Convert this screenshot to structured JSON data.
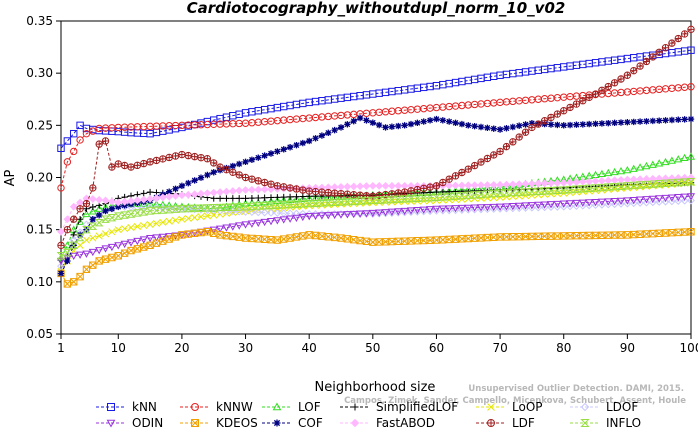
{
  "chart_data": {
    "type": "line",
    "title": "Cardiotocography_withoutdupl_norm_10_v02",
    "xlabel": "Neighborhood size",
    "ylabel": "AP",
    "xlim": [
      1,
      100
    ],
    "ylim": [
      0.05,
      0.35
    ],
    "x_ticks": [
      1,
      10,
      20,
      30,
      40,
      50,
      60,
      70,
      80,
      90,
      100
    ],
    "y_ticks": [
      0.05,
      0.1,
      0.15,
      0.2,
      0.25,
      0.3,
      0.35
    ],
    "grid": false,
    "legend_position": "bottom",
    "watermark_lines": [
      "Unsupervised Outlier Detection. DAMI, 2015.",
      "Campos, Zimek, Sander, Campello, Micenkova, Schubert, Assent, Houle"
    ],
    "series": [
      {
        "name": "kNN",
        "color": "#1a1ae6",
        "marker": "square",
        "anchors": [
          [
            1,
            0.228
          ],
          [
            2,
            0.235
          ],
          [
            3,
            0.242
          ],
          [
            4,
            0.25
          ],
          [
            5,
            0.247
          ],
          [
            7,
            0.245
          ],
          [
            10,
            0.244
          ],
          [
            12,
            0.243
          ],
          [
            15,
            0.242
          ],
          [
            20,
            0.248
          ],
          [
            25,
            0.255
          ],
          [
            30,
            0.262
          ],
          [
            40,
            0.272
          ],
          [
            50,
            0.28
          ],
          [
            60,
            0.288
          ],
          [
            70,
            0.298
          ],
          [
            80,
            0.306
          ],
          [
            90,
            0.314
          ],
          [
            95,
            0.318
          ],
          [
            100,
            0.322
          ]
        ]
      },
      {
        "name": "kNNW",
        "color": "#e62020",
        "marker": "circle",
        "anchors": [
          [
            1,
            0.19
          ],
          [
            2,
            0.215
          ],
          [
            3,
            0.225
          ],
          [
            4,
            0.236
          ],
          [
            5,
            0.242
          ],
          [
            7,
            0.247
          ],
          [
            10,
            0.248
          ],
          [
            15,
            0.249
          ],
          [
            20,
            0.25
          ],
          [
            30,
            0.252
          ],
          [
            40,
            0.257
          ],
          [
            50,
            0.262
          ],
          [
            60,
            0.267
          ],
          [
            70,
            0.272
          ],
          [
            80,
            0.277
          ],
          [
            90,
            0.282
          ],
          [
            100,
            0.287
          ]
        ]
      },
      {
        "name": "LOF",
        "color": "#33dd22",
        "marker": "triangle",
        "anchors": [
          [
            1,
            0.123
          ],
          [
            2,
            0.135
          ],
          [
            3,
            0.15
          ],
          [
            5,
            0.165
          ],
          [
            7,
            0.17
          ],
          [
            10,
            0.174
          ],
          [
            15,
            0.175
          ],
          [
            20,
            0.172
          ],
          [
            25,
            0.17
          ],
          [
            30,
            0.175
          ],
          [
            40,
            0.18
          ],
          [
            50,
            0.183
          ],
          [
            60,
            0.186
          ],
          [
            70,
            0.191
          ],
          [
            80,
            0.198
          ],
          [
            90,
            0.207
          ],
          [
            100,
            0.22
          ]
        ]
      },
      {
        "name": "SimplifiedLOF",
        "color": "#000000",
        "marker": "plus",
        "anchors": [
          [
            1,
            0.11
          ],
          [
            2,
            0.125
          ],
          [
            3,
            0.145
          ],
          [
            4,
            0.16
          ],
          [
            5,
            0.17
          ],
          [
            8,
            0.175
          ],
          [
            10,
            0.18
          ],
          [
            15,
            0.186
          ],
          [
            20,
            0.184
          ],
          [
            25,
            0.18
          ],
          [
            30,
            0.18
          ],
          [
            40,
            0.182
          ],
          [
            50,
            0.183
          ],
          [
            60,
            0.186
          ],
          [
            70,
            0.188
          ],
          [
            80,
            0.19
          ],
          [
            90,
            0.193
          ],
          [
            100,
            0.195
          ]
        ]
      },
      {
        "name": "LoOP",
        "color": "#e6e600",
        "marker": "x",
        "anchors": [
          [
            1,
            0.11
          ],
          [
            2,
            0.12
          ],
          [
            3,
            0.13
          ],
          [
            5,
            0.14
          ],
          [
            10,
            0.15
          ],
          [
            20,
            0.16
          ],
          [
            30,
            0.168
          ],
          [
            40,
            0.173
          ],
          [
            50,
            0.176
          ],
          [
            60,
            0.178
          ],
          [
            70,
            0.181
          ],
          [
            80,
            0.185
          ],
          [
            90,
            0.19
          ],
          [
            100,
            0.195
          ]
        ]
      },
      {
        "name": "LDOF",
        "color": "#c8c8ff",
        "marker": "diamond",
        "anchors": [
          [
            1,
            0.115
          ],
          [
            2,
            0.125
          ],
          [
            3,
            0.14
          ],
          [
            5,
            0.155
          ],
          [
            8,
            0.168
          ],
          [
            10,
            0.172
          ],
          [
            20,
            0.17
          ],
          [
            30,
            0.167
          ],
          [
            40,
            0.165
          ],
          [
            50,
            0.165
          ],
          [
            60,
            0.168
          ],
          [
            70,
            0.17
          ],
          [
            80,
            0.172
          ],
          [
            90,
            0.175
          ],
          [
            100,
            0.178
          ]
        ]
      },
      {
        "name": "ODIN",
        "color": "#9933dd",
        "marker": "triangle-down",
        "anchors": [
          [
            1,
            0.12
          ],
          [
            2,
            0.123
          ],
          [
            3,
            0.125
          ],
          [
            5,
            0.127
          ],
          [
            8,
            0.132
          ],
          [
            10,
            0.135
          ],
          [
            15,
            0.142
          ],
          [
            20,
            0.145
          ],
          [
            25,
            0.15
          ],
          [
            30,
            0.155
          ],
          [
            40,
            0.163
          ],
          [
            50,
            0.166
          ],
          [
            60,
            0.17
          ],
          [
            70,
            0.172
          ],
          [
            80,
            0.175
          ],
          [
            90,
            0.178
          ],
          [
            100,
            0.182
          ]
        ]
      },
      {
        "name": "KDEOS",
        "color": "#f0a000",
        "marker": "square-x",
        "anchors": [
          [
            1,
            0.108
          ],
          [
            2,
            0.098
          ],
          [
            3,
            0.1
          ],
          [
            4,
            0.105
          ],
          [
            5,
            0.112
          ],
          [
            7,
            0.12
          ],
          [
            10,
            0.125
          ],
          [
            12,
            0.13
          ],
          [
            15,
            0.135
          ],
          [
            20,
            0.145
          ],
          [
            24,
            0.148
          ],
          [
            26,
            0.145
          ],
          [
            30,
            0.142
          ],
          [
            35,
            0.14
          ],
          [
            40,
            0.145
          ],
          [
            45,
            0.142
          ],
          [
            50,
            0.138
          ],
          [
            60,
            0.14
          ],
          [
            70,
            0.143
          ],
          [
            80,
            0.144
          ],
          [
            90,
            0.145
          ],
          [
            100,
            0.148
          ]
        ]
      },
      {
        "name": "COF",
        "color": "#000080",
        "marker": "star",
        "anchors": [
          [
            1,
            0.108
          ],
          [
            2,
            0.12
          ],
          [
            3,
            0.135
          ],
          [
            4,
            0.145
          ],
          [
            5,
            0.15
          ],
          [
            6,
            0.16
          ],
          [
            8,
            0.168
          ],
          [
            10,
            0.172
          ],
          [
            15,
            0.178
          ],
          [
            20,
            0.192
          ],
          [
            25,
            0.205
          ],
          [
            30,
            0.215
          ],
          [
            35,
            0.225
          ],
          [
            40,
            0.235
          ],
          [
            45,
            0.248
          ],
          [
            48,
            0.257
          ],
          [
            52,
            0.248
          ],
          [
            55,
            0.25
          ],
          [
            60,
            0.256
          ],
          [
            65,
            0.25
          ],
          [
            70,
            0.246
          ],
          [
            75,
            0.252
          ],
          [
            80,
            0.25
          ],
          [
            90,
            0.253
          ],
          [
            100,
            0.256
          ]
        ]
      },
      {
        "name": "FastABOD",
        "color": "#ffb8ff",
        "marker": "diamond-filled",
        "anchors": [
          [
            1,
            0.148
          ],
          [
            2,
            0.16
          ],
          [
            3,
            0.172
          ],
          [
            5,
            0.18
          ],
          [
            8,
            0.178
          ],
          [
            10,
            0.176
          ],
          [
            20,
            0.183
          ],
          [
            30,
            0.188
          ],
          [
            40,
            0.19
          ],
          [
            50,
            0.192
          ],
          [
            60,
            0.192
          ],
          [
            70,
            0.193
          ],
          [
            80,
            0.195
          ],
          [
            90,
            0.198
          ],
          [
            100,
            0.2
          ]
        ]
      },
      {
        "name": "LDF",
        "color": "#a02020",
        "marker": "circle-cross",
        "anchors": [
          [
            1,
            0.135
          ],
          [
            2,
            0.15
          ],
          [
            3,
            0.16
          ],
          [
            4,
            0.17
          ],
          [
            5,
            0.175
          ],
          [
            6,
            0.19
          ],
          [
            7,
            0.232
          ],
          [
            8,
            0.235
          ],
          [
            9,
            0.21
          ],
          [
            10,
            0.213
          ],
          [
            12,
            0.21
          ],
          [
            15,
            0.215
          ],
          [
            20,
            0.222
          ],
          [
            24,
            0.218
          ],
          [
            26,
            0.21
          ],
          [
            30,
            0.2
          ],
          [
            35,
            0.192
          ],
          [
            40,
            0.187
          ],
          [
            50,
            0.182
          ],
          [
            55,
            0.186
          ],
          [
            60,
            0.192
          ],
          [
            65,
            0.208
          ],
          [
            70,
            0.225
          ],
          [
            75,
            0.248
          ],
          [
            80,
            0.264
          ],
          [
            85,
            0.28
          ],
          [
            90,
            0.298
          ],
          [
            95,
            0.32
          ],
          [
            100,
            0.342
          ]
        ]
      },
      {
        "name": "INFLO",
        "color": "#99dd44",
        "marker": "hourglass",
        "anchors": [
          [
            1,
            0.125
          ],
          [
            2,
            0.128
          ],
          [
            3,
            0.135
          ],
          [
            5,
            0.15
          ],
          [
            8,
            0.16
          ],
          [
            10,
            0.163
          ],
          [
            15,
            0.168
          ],
          [
            20,
            0.17
          ],
          [
            30,
            0.172
          ],
          [
            40,
            0.175
          ],
          [
            50,
            0.178
          ],
          [
            60,
            0.181
          ],
          [
            70,
            0.185
          ],
          [
            80,
            0.188
          ],
          [
            90,
            0.192
          ],
          [
            100,
            0.196
          ]
        ]
      }
    ]
  }
}
